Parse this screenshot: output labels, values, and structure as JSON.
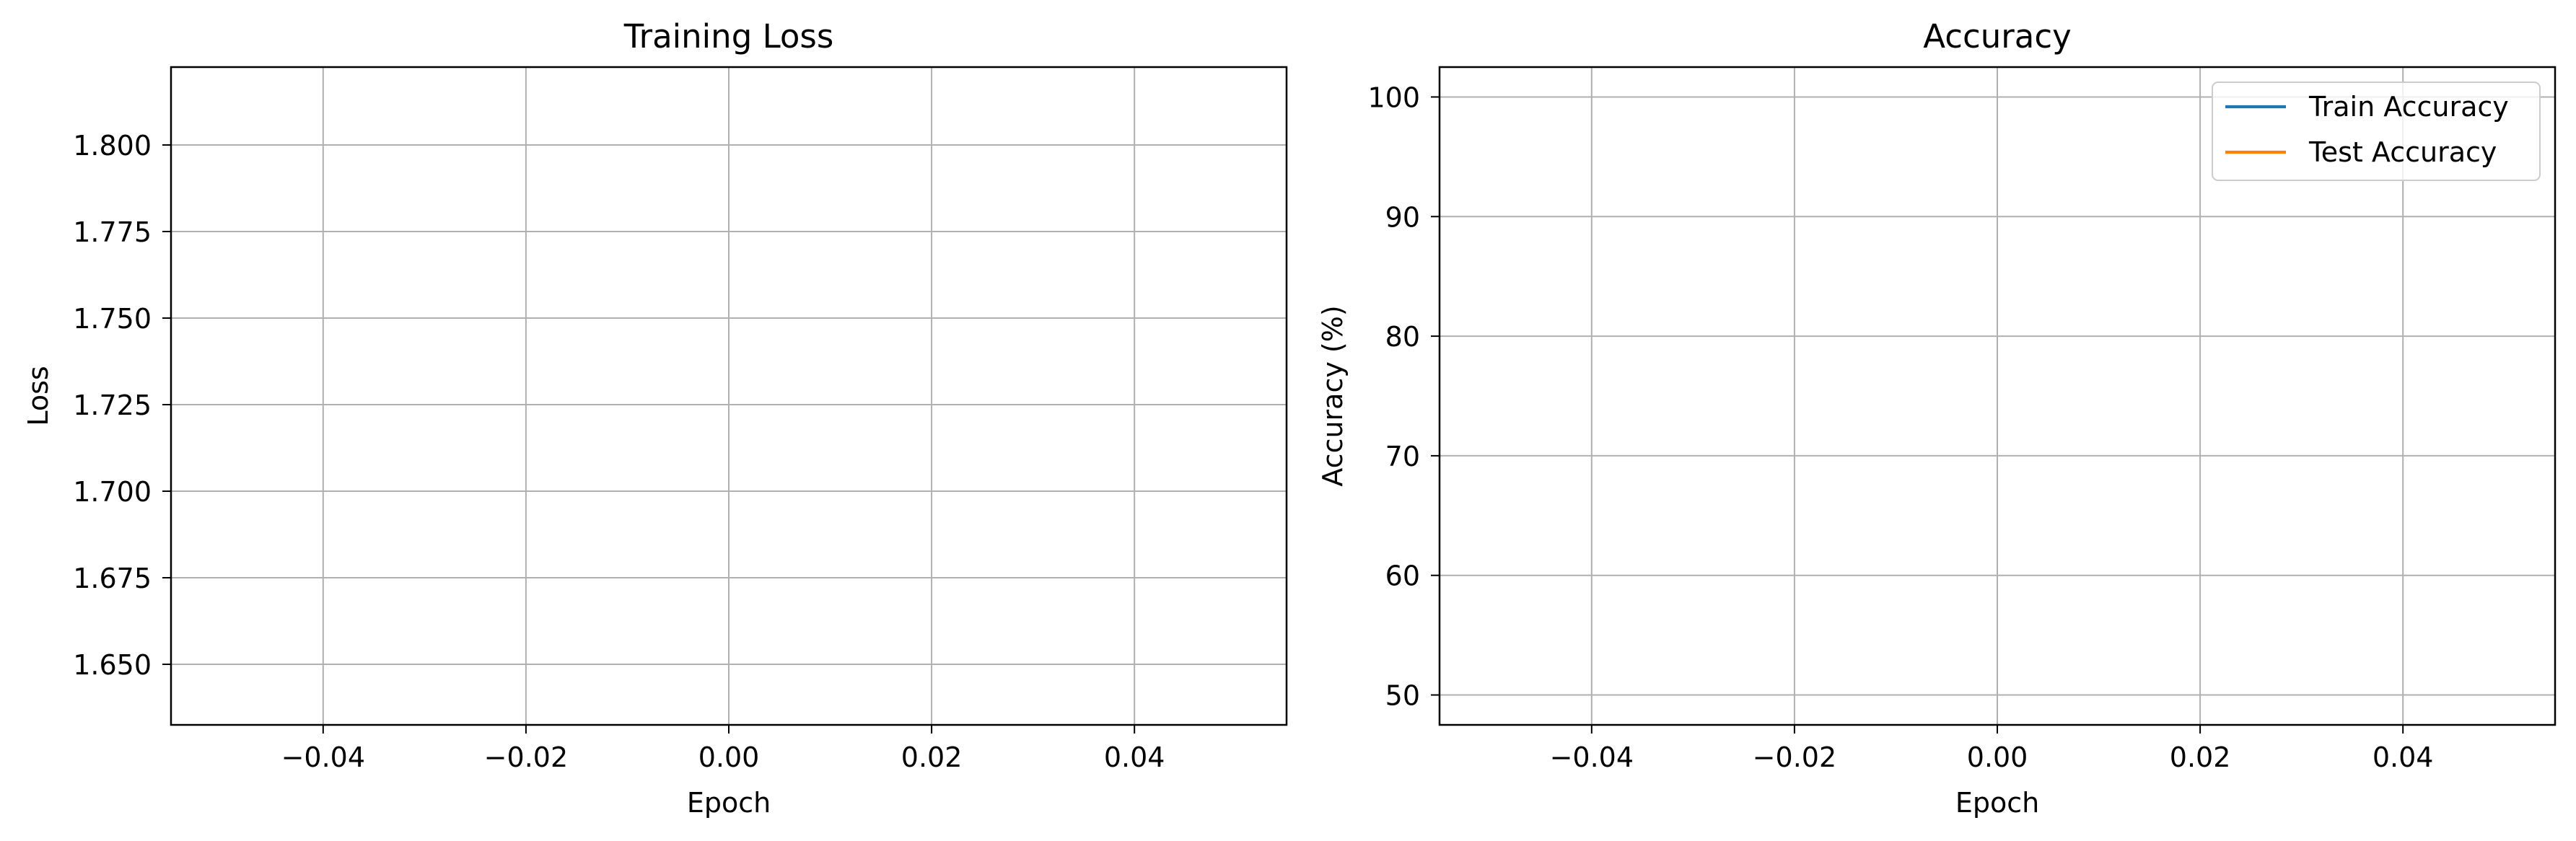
{
  "chart_data": [
    {
      "type": "line",
      "title": "Training Loss",
      "xlabel": "Epoch",
      "ylabel": "Loss",
      "xlim": [
        -0.055,
        0.055
      ],
      "ylim": [
        1.6325,
        1.8225
      ],
      "x_ticks": [
        -0.04,
        -0.02,
        0.0,
        0.02,
        0.04
      ],
      "x_tick_labels": [
        "−0.04",
        "−0.02",
        "0.00",
        "0.02",
        "0.04"
      ],
      "y_ticks": [
        1.65,
        1.675,
        1.7,
        1.725,
        1.75,
        1.775,
        1.8
      ],
      "y_tick_labels": [
        "1.650",
        "1.675",
        "1.700",
        "1.725",
        "1.750",
        "1.775",
        "1.800"
      ],
      "grid": true,
      "legend": null,
      "series": [
        {
          "color": "#1f77b4",
          "x": [],
          "y": []
        }
      ]
    },
    {
      "type": "line",
      "title": "Accuracy",
      "xlabel": "Epoch",
      "ylabel": "Accuracy (%)",
      "xlim": [
        -0.055,
        0.055
      ],
      "ylim": [
        47.5,
        102.5
      ],
      "x_ticks": [
        -0.04,
        -0.02,
        0.0,
        0.02,
        0.04
      ],
      "x_tick_labels": [
        "−0.04",
        "−0.02",
        "0.00",
        "0.02",
        "0.04"
      ],
      "y_ticks": [
        50,
        60,
        70,
        80,
        90,
        100
      ],
      "y_tick_labels": [
        "50",
        "60",
        "70",
        "80",
        "90",
        "100"
      ],
      "grid": true,
      "legend": "top-right",
      "series": [
        {
          "name": "Train Accuracy",
          "color": "#1f77b4",
          "x": [],
          "y": []
        },
        {
          "name": "Test Accuracy",
          "color": "#ff7f0e",
          "x": [],
          "y": []
        }
      ]
    }
  ]
}
